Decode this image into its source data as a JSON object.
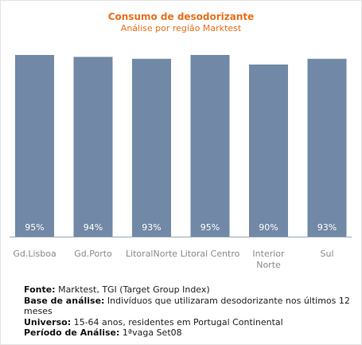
{
  "chart_data": {
    "type": "bar",
    "title": "Consumo de desodorizante",
    "subtitle": "Análise por região Marktest",
    "categories": [
      "Gd.Lisboa",
      "Gd.Porto",
      "LitoralNorte",
      "Litoral Centro",
      "Interior Norte",
      "Sul"
    ],
    "category_lines": [
      [
        "Gd.Lisboa"
      ],
      [
        "Gd.Porto"
      ],
      [
        "LitoralNorte"
      ],
      [
        "Litoral Centro"
      ],
      [
        "Interior",
        "Norte"
      ],
      [
        "Sul"
      ]
    ],
    "values": [
      95,
      94,
      93,
      95,
      90,
      93
    ],
    "value_labels": [
      "95%",
      "94%",
      "93%",
      "95%",
      "90%",
      "93%"
    ],
    "ylim": [
      0,
      100
    ],
    "grid": false,
    "legend": "none",
    "bar_color": "#7189a6",
    "axis_color": "#9aaabb",
    "title_color": "#e8701a",
    "label_color": "#8a8a8a"
  },
  "footer": {
    "source_label": "Fonte:",
    "source_text": " Marktest, TGI (Target Group Index)",
    "base_label": "Base de análise:",
    "base_text": " Indivíduos que utilizaram desodorizante nos últimos 12 meses",
    "universe_label": "Universo:",
    "universe_text": " 15-64 anos, residentes em Portugal Continental",
    "period_label": "Período de Análise:",
    "period_text": " 1ªvaga Set08"
  }
}
